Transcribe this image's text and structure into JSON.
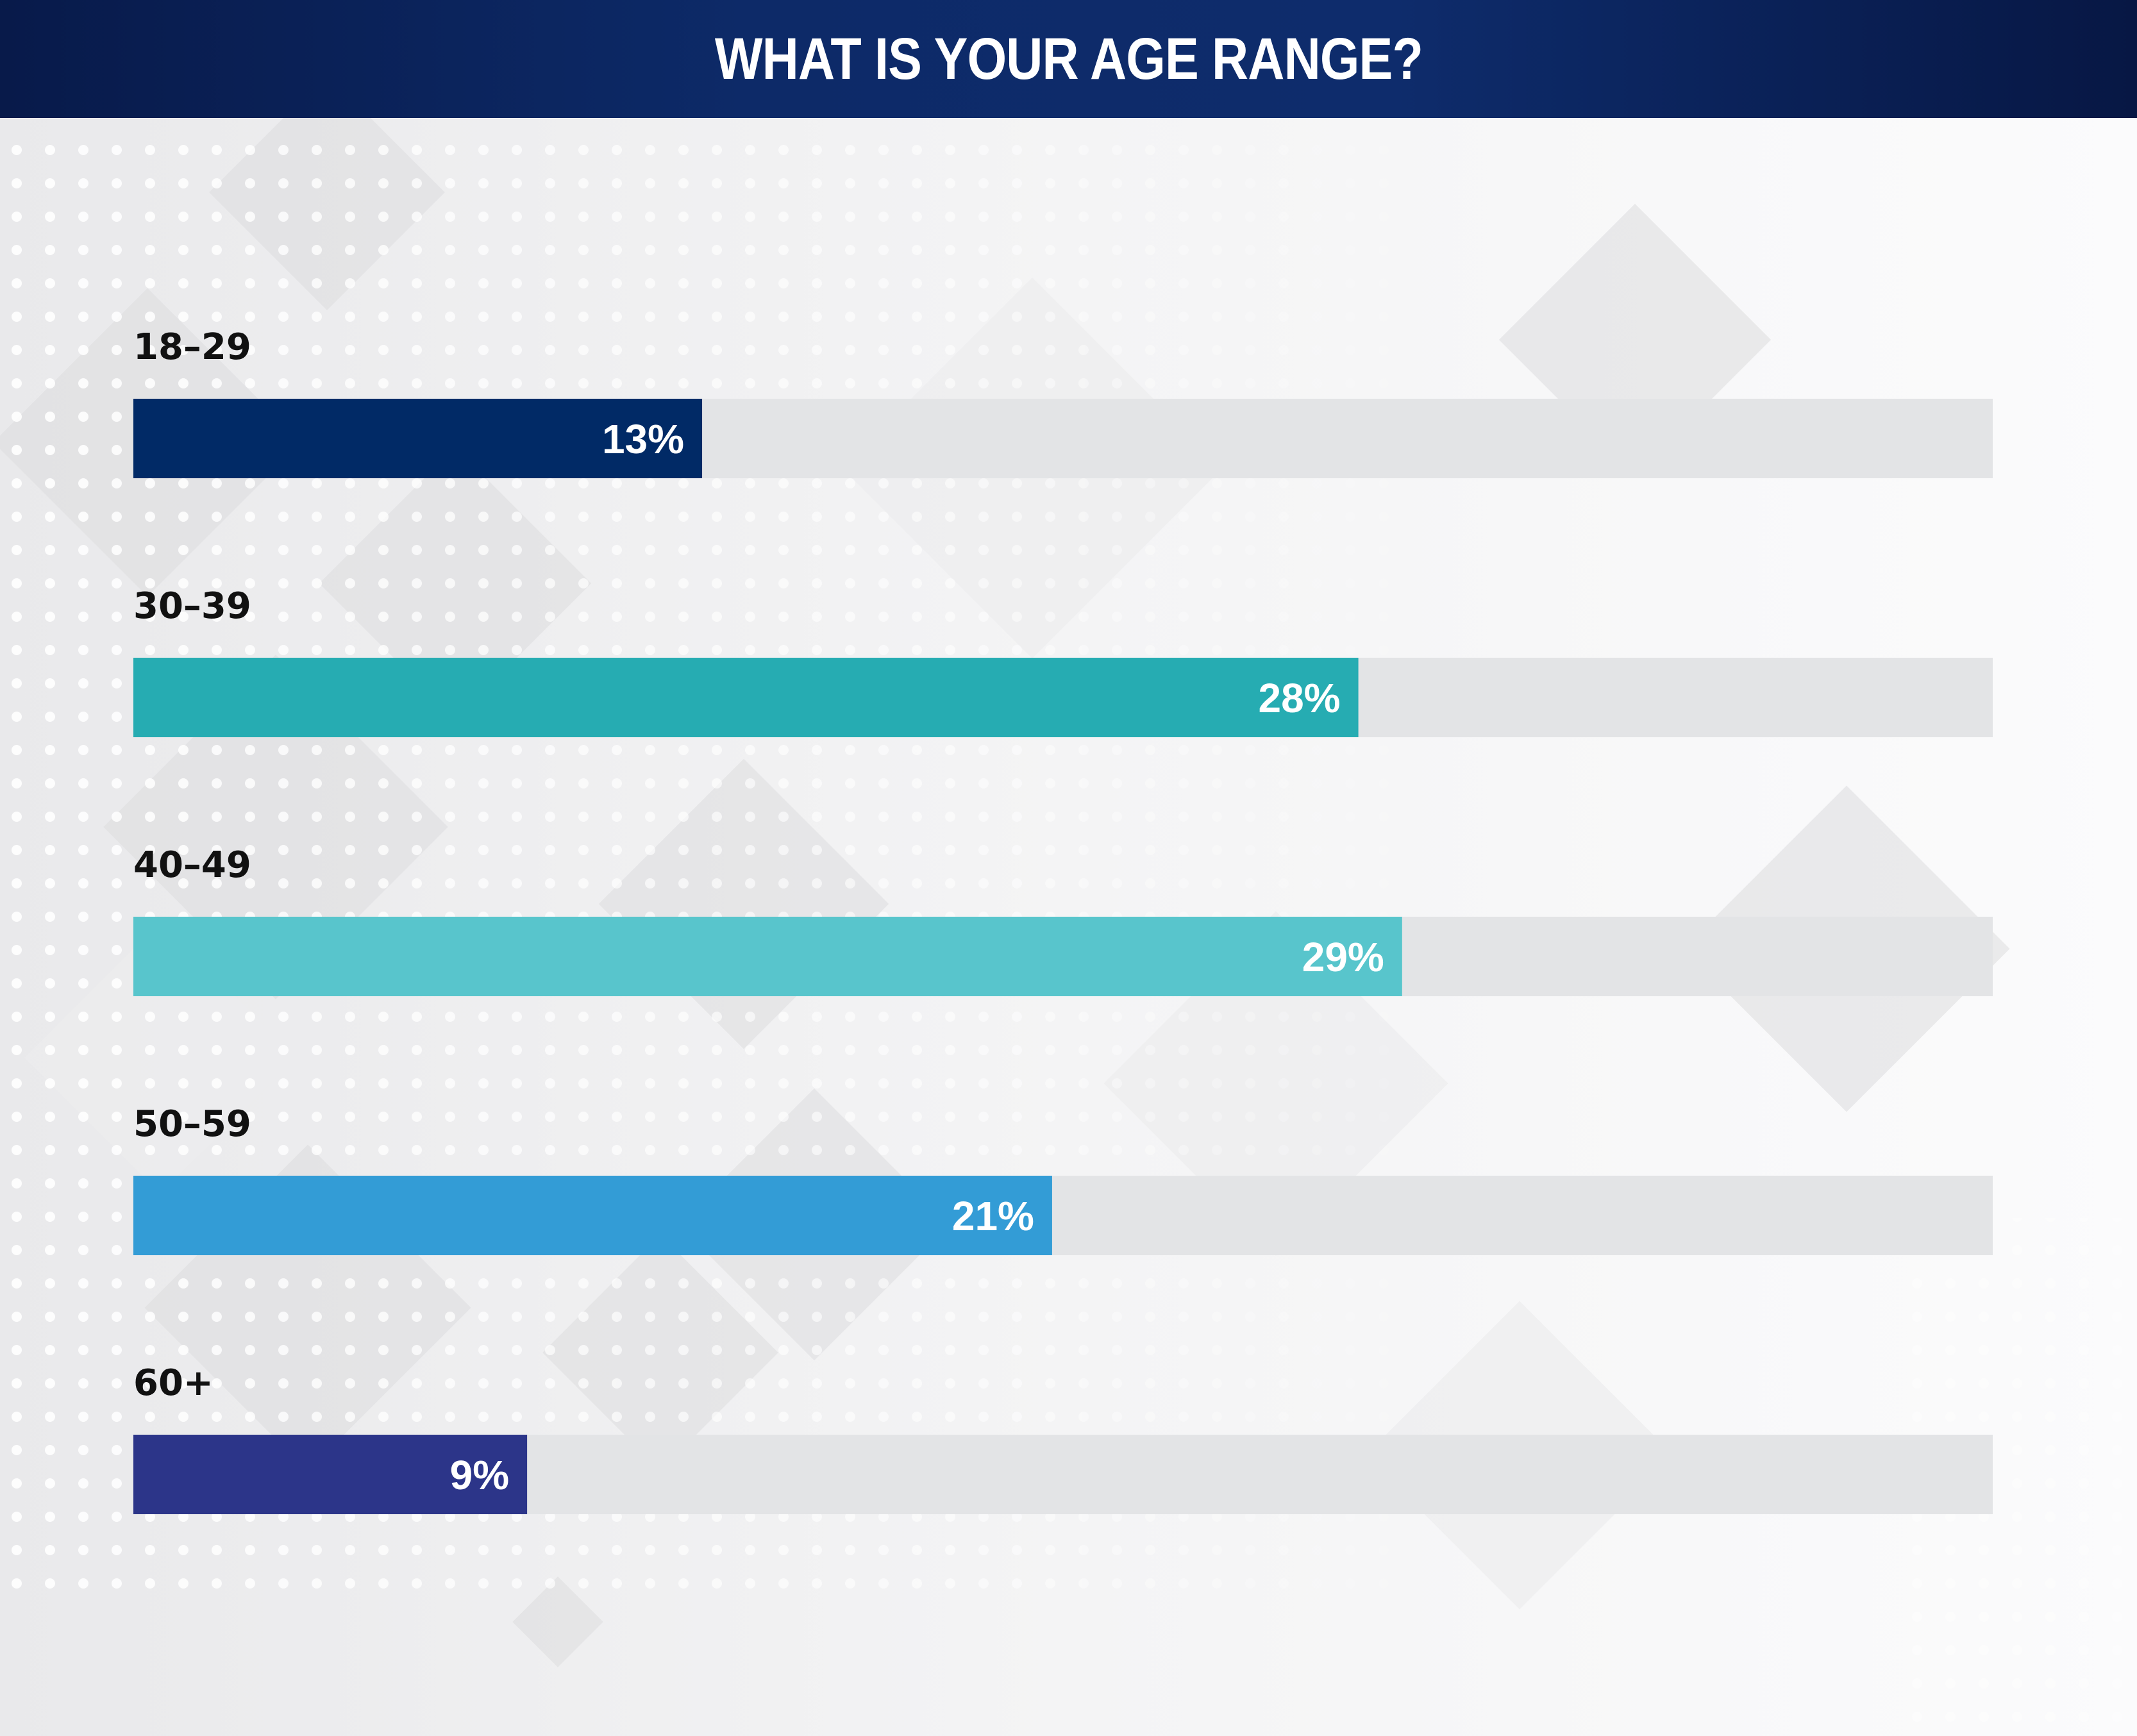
{
  "header": {
    "title": "WHAT IS YOUR AGE RANGE?"
  },
  "chart_data": {
    "type": "bar",
    "orientation": "horizontal",
    "title": "WHAT IS YOUR AGE RANGE?",
    "categories": [
      "18–29",
      "30–39",
      "40–49",
      "50–59",
      "60+"
    ],
    "values": [
      13,
      28,
      29,
      21,
      9
    ],
    "value_labels": [
      "13%",
      "28%",
      "29%",
      "21%",
      "9%"
    ],
    "colors": [
      "#012a66",
      "#26acb2",
      "#58c5cc",
      "#339cd6",
      "#2c3589"
    ],
    "track_color": "#e3e4e6",
    "xlim": [
      0,
      42.5
    ],
    "grid": false,
    "legend": "none"
  }
}
